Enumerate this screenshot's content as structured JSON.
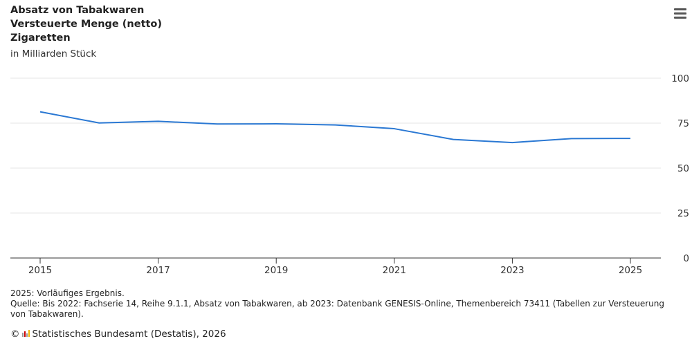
{
  "header": {
    "title_lines": [
      "Absatz von Tabakwaren",
      "Versteuerte Menge (netto)",
      "Zigaretten"
    ],
    "unit": "in Milliarden Stück",
    "menu_icon": "hamburger-menu-icon"
  },
  "chart_data": {
    "type": "line",
    "x": [
      2015,
      2016,
      2017,
      2018,
      2019,
      2020,
      2021,
      2022,
      2023,
      2024,
      2025
    ],
    "series": [
      {
        "values": [
          81.3,
          75.1,
          76.0,
          74.5,
          74.6,
          74.0,
          71.9,
          65.9,
          64.2,
          66.4,
          66.5
        ],
        "color": "#2a78d3"
      }
    ],
    "xticks": [
      "2015",
      "2017",
      "2019",
      "2021",
      "2023",
      "2025"
    ],
    "yticks": [
      "0",
      "25",
      "50",
      "75",
      "100"
    ],
    "ylim": [
      0,
      100
    ],
    "xlim": [
      2015,
      2025
    ],
    "grid": true,
    "y_axis_position": "right",
    "legend": "none"
  },
  "footer": {
    "note": "2025: Vorläufiges Ergebnis.",
    "source": "Quelle: Bis 2022: Fachserie 14, Reihe 9.1.1, Absatz von Tabakwaren, ab 2023: Datenbank GENESIS-Online, Themenbereich 73411 (Tabellen zur Versteuerung von Tabakwaren).",
    "copyright_symbol": "©",
    "credit": "Statistisches Bundesamt (Destatis), 2026"
  }
}
